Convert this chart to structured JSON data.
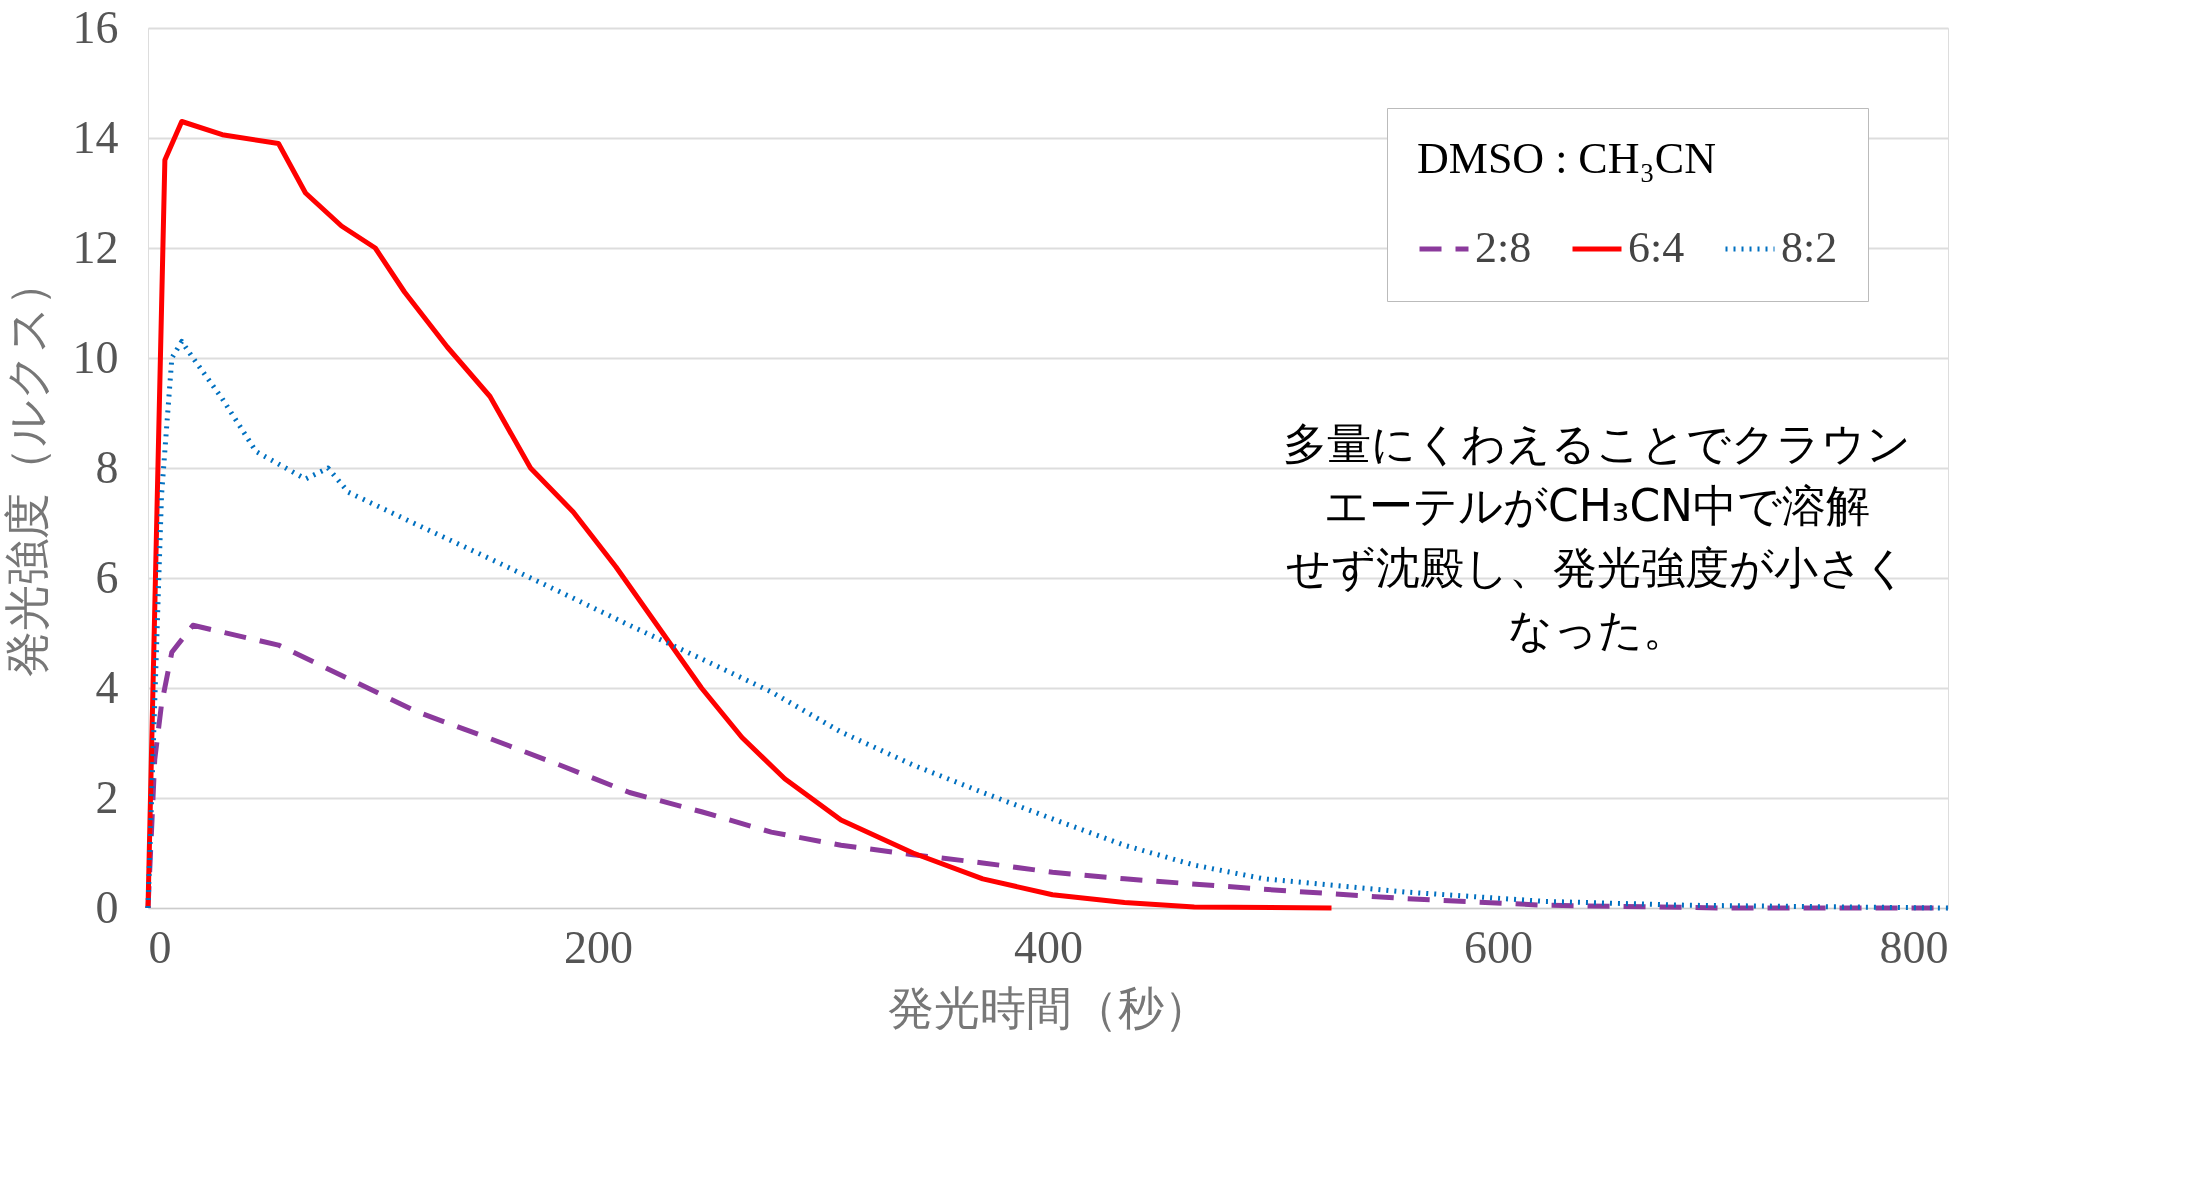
{
  "chart_data": {
    "type": "line",
    "xlabel": "発光時間（秒）",
    "ylabel": "発光強度（ルクス）",
    "legend_title": "DMSO : CH₃CN",
    "xlim": [
      0,
      800
    ],
    "xticks": [
      0,
      200,
      400,
      600,
      800
    ],
    "ylim": [
      0,
      16
    ],
    "yticks": [
      0,
      2,
      4,
      6,
      8,
      10,
      12,
      14,
      16
    ],
    "grid": "y",
    "legend": "top right",
    "marker": "none",
    "series": [
      {
        "name": "2:8",
        "color": "#8b3a9c",
        "line_style": "dashed",
        "x": [
          0,
          3,
          6,
          10.6,
          20,
          58,
          89,
          120,
          152,
          183,
          214,
          246,
          277,
          308,
          340,
          371,
          402,
          434,
          496,
          559,
          621,
          700,
          800
        ],
        "values": [
          0,
          2.7,
          3.7,
          4.65,
          5.14,
          4.78,
          4.17,
          3.56,
          3.08,
          2.6,
          2.1,
          1.75,
          1.38,
          1.14,
          0.97,
          0.82,
          0.65,
          0.53,
          0.34,
          0.17,
          0.05,
          0,
          0
        ]
      },
      {
        "name": "6:4",
        "color": "#ff0000",
        "line_style": "solid",
        "x": [
          0,
          7.5,
          15,
          33,
          58,
          70,
          86,
          101,
          114,
          133,
          152,
          170,
          189,
          208,
          227,
          246,
          264,
          283,
          308,
          340,
          371,
          402,
          434,
          465,
          526
        ],
        "values": [
          0,
          13.6,
          14.3,
          14.06,
          13.9,
          13.0,
          12.4,
          12.0,
          11.2,
          10.2,
          9.3,
          8.0,
          7.2,
          6.2,
          5.1,
          4.0,
          3.1,
          2.35,
          1.6,
          1.0,
          0.53,
          0.24,
          0.1,
          0.02,
          0
        ]
      },
      {
        "name": "8:2",
        "color": "#0070c0",
        "line_style": "dotted",
        "x": [
          0,
          6,
          10.6,
          15,
          20,
          33,
          48,
          70,
          80,
          89,
          120,
          152,
          183,
          214,
          246,
          277,
          308,
          340,
          371,
          402,
          434,
          465,
          496,
          559,
          621,
          684,
          800
        ],
        "values": [
          0,
          7.5,
          10.0,
          10.3,
          10.0,
          9.26,
          8.3,
          7.8,
          8.0,
          7.56,
          6.96,
          6.35,
          5.75,
          5.14,
          4.53,
          3.93,
          3.2,
          2.6,
          2.1,
          1.62,
          1.14,
          0.78,
          0.53,
          0.29,
          0.12,
          0.05,
          0
        ]
      }
    ],
    "annotations": [
      "多量にくわえることでクラウンエーテルがCH₃CN中で溶解せず沈殿し、発光強度が小さくなった。"
    ]
  }
}
